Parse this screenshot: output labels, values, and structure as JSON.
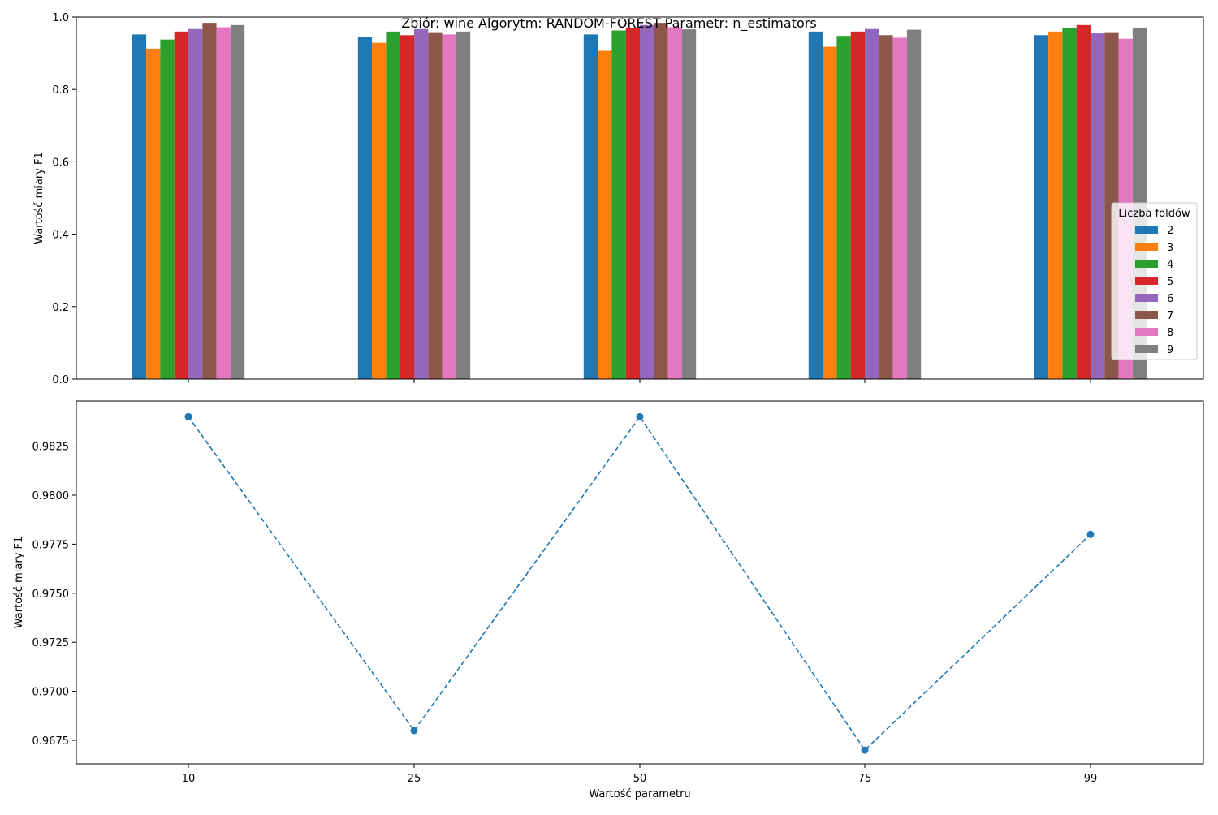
{
  "figure_title": "Zbiór: wine Algorytm: RANDOM-FOREST Parametr: n_estimators",
  "chart_data": [
    {
      "type": "bar",
      "title": "Zbiór: wine Algorytm: RANDOM-FOREST Parametr: n_estimators",
      "xlabel": "",
      "ylabel": "Wartość miary F1",
      "ylim": [
        0,
        1.0
      ],
      "yticks": [
        "0.0",
        "0.2",
        "0.4",
        "0.6",
        "0.8",
        "1.0"
      ],
      "categories": [
        "10",
        "25",
        "50",
        "75",
        "99"
      ],
      "legend_title": "Liczba foldów",
      "legend_position": "right",
      "grid": false,
      "series": [
        {
          "name": "2",
          "color": "#1f77b4",
          "values": [
            0.952,
            0.946,
            0.952,
            0.96,
            0.95
          ]
        },
        {
          "name": "3",
          "color": "#ff7f0e",
          "values": [
            0.913,
            0.929,
            0.907,
            0.918,
            0.96
          ]
        },
        {
          "name": "4",
          "color": "#2ca02c",
          "values": [
            0.938,
            0.96,
            0.963,
            0.948,
            0.971
          ]
        },
        {
          "name": "5",
          "color": "#d62728",
          "values": [
            0.96,
            0.95,
            0.971,
            0.96,
            0.978
          ]
        },
        {
          "name": "6",
          "color": "#9467bd",
          "values": [
            0.967,
            0.967,
            0.978,
            0.967,
            0.955
          ]
        },
        {
          "name": "7",
          "color": "#8c564b",
          "values": [
            0.984,
            0.956,
            0.984,
            0.95,
            0.956
          ]
        },
        {
          "name": "8",
          "color": "#e377c2",
          "values": [
            0.972,
            0.952,
            0.972,
            0.943,
            0.94
          ]
        },
        {
          "name": "9",
          "color": "#7f7f7f",
          "values": [
            0.978,
            0.96,
            0.966,
            0.965,
            0.971
          ]
        }
      ]
    },
    {
      "type": "line",
      "xlabel": "Wartość parametru",
      "ylabel": "Wartość miary F1",
      "x": [
        "10",
        "25",
        "50",
        "75",
        "99"
      ],
      "y": [
        0.984,
        0.968,
        0.984,
        0.967,
        0.978
      ],
      "ylim": [
        0.9663,
        0.9848
      ],
      "yticks": [
        "0.9675",
        "0.9700",
        "0.9725",
        "0.9750",
        "0.9775",
        "0.9800",
        "0.9825"
      ],
      "line_style": "dashed",
      "marker": "circle",
      "color": "#1f77b4",
      "grid": false
    }
  ]
}
